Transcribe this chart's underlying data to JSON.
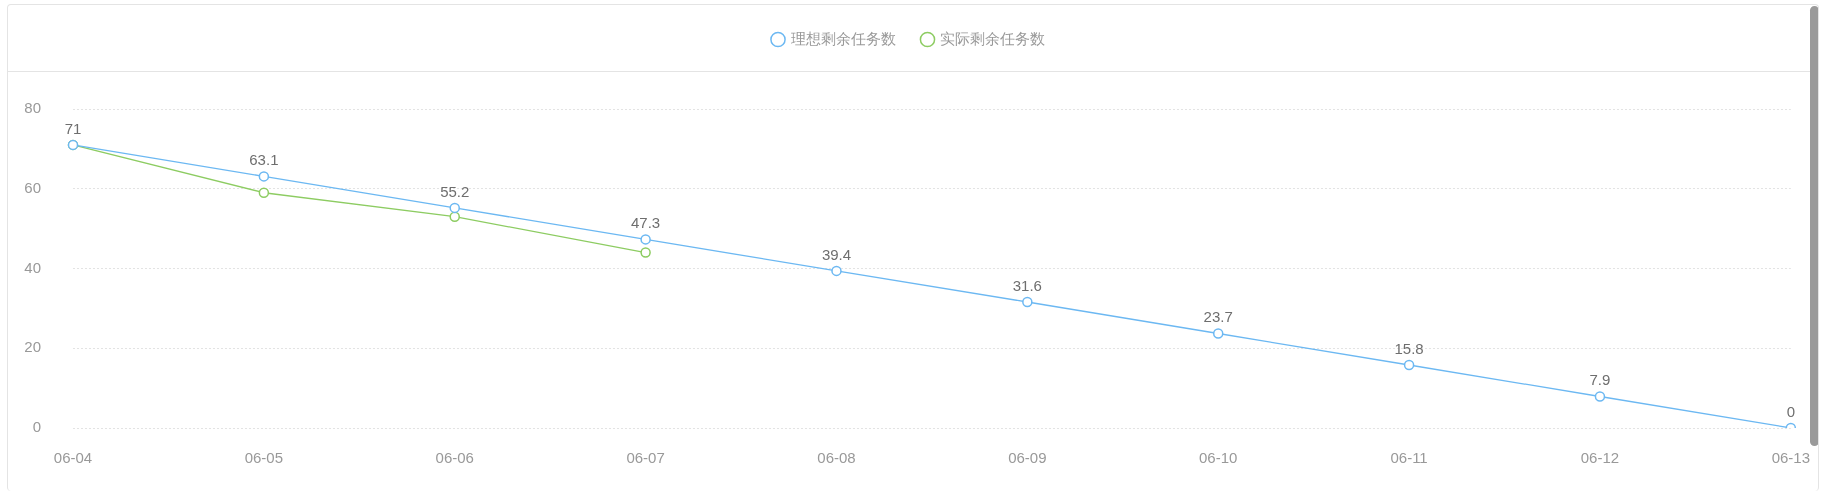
{
  "chart_data": {
    "type": "line",
    "categories": [
      "06-04",
      "06-05",
      "06-06",
      "06-07",
      "06-08",
      "06-09",
      "06-10",
      "06-11",
      "06-12",
      "06-13"
    ],
    "series": [
      {
        "name": "理想剩余任务数",
        "color": "#6cb8f2",
        "values": [
          71,
          63.1,
          55.2,
          47.3,
          39.4,
          31.6,
          23.7,
          15.8,
          7.9,
          0
        ],
        "value_labels": [
          "71",
          "63.1",
          "55.2",
          "47.3",
          "39.4",
          "31.6",
          "23.7",
          "15.8",
          "7.9",
          "0"
        ]
      },
      {
        "name": "实际剩余任务数",
        "color": "#8dcc62",
        "values": [
          71,
          59,
          53,
          44,
          null,
          null,
          null,
          null,
          null,
          null
        ]
      }
    ],
    "ylim": [
      0,
      80
    ],
    "yticks": [
      0,
      20,
      40,
      60,
      80
    ],
    "grid": "y",
    "legend": "top",
    "marker": "circle",
    "line_style": "solid"
  }
}
